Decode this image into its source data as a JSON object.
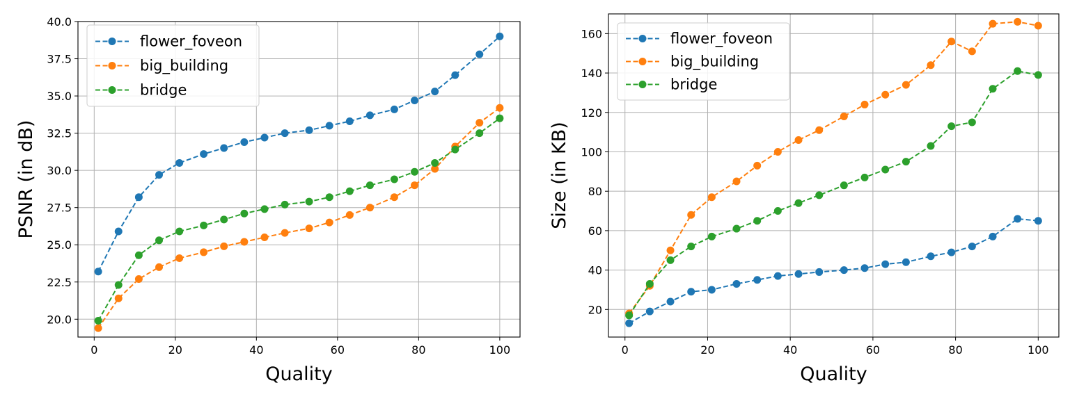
{
  "chart_data": [
    {
      "type": "line",
      "title": "",
      "xlabel": "Quality",
      "ylabel": "PSNR (in dB)",
      "xlim": [
        -4,
        105
      ],
      "ylim": [
        18.8,
        40.0
      ],
      "xticks": [
        0,
        20,
        40,
        60,
        80,
        100
      ],
      "yticks": [
        20.0,
        22.5,
        25.0,
        27.5,
        30.0,
        32.5,
        35.0,
        37.5,
        40.0
      ],
      "xtick_labels": [
        "0",
        "20",
        "40",
        "60",
        "80",
        "100"
      ],
      "ytick_labels": [
        "20.0",
        "22.5",
        "25.0",
        "27.5",
        "30.0",
        "32.5",
        "35.0",
        "37.5",
        "40.0"
      ],
      "grid": true,
      "legend_position": "top-left",
      "x": [
        1,
        6,
        11,
        16,
        21,
        27,
        32,
        37,
        42,
        47,
        53,
        58,
        63,
        68,
        74,
        79,
        84,
        89,
        95,
        100
      ],
      "series": [
        {
          "name": "flower_foveon",
          "color": "#1f77b4",
          "values": [
            23.2,
            25.9,
            28.2,
            29.7,
            30.5,
            31.1,
            31.5,
            31.9,
            32.2,
            32.5,
            32.7,
            33.0,
            33.3,
            33.7,
            34.1,
            34.7,
            35.3,
            36.4,
            37.8,
            39.0
          ]
        },
        {
          "name": "big_building",
          "color": "#ff7f0e",
          "values": [
            19.4,
            21.4,
            22.7,
            23.5,
            24.1,
            24.5,
            24.9,
            25.2,
            25.5,
            25.8,
            26.1,
            26.5,
            27.0,
            27.5,
            28.2,
            29.0,
            30.1,
            31.6,
            33.2,
            34.2
          ]
        },
        {
          "name": "bridge",
          "color": "#2ca02c",
          "values": [
            19.9,
            22.3,
            24.3,
            25.3,
            25.9,
            26.3,
            26.7,
            27.1,
            27.4,
            27.7,
            27.9,
            28.2,
            28.6,
            29.0,
            29.4,
            29.9,
            30.5,
            31.4,
            32.5,
            33.5
          ]
        }
      ]
    },
    {
      "type": "line",
      "title": "",
      "xlabel": "Quality",
      "ylabel": "Size (in KB)",
      "xlim": [
        -4,
        105
      ],
      "ylim": [
        6,
        170
      ],
      "xticks": [
        0,
        20,
        40,
        60,
        80,
        100
      ],
      "yticks": [
        20,
        40,
        60,
        80,
        100,
        120,
        140,
        160
      ],
      "xtick_labels": [
        "0",
        "20",
        "40",
        "60",
        "80",
        "100"
      ],
      "ytick_labels": [
        "20",
        "40",
        "60",
        "80",
        "100",
        "120",
        "140",
        "160"
      ],
      "grid": true,
      "legend_position": "top-left",
      "x": [
        1,
        6,
        11,
        16,
        21,
        27,
        32,
        37,
        42,
        47,
        53,
        58,
        63,
        68,
        74,
        79,
        84,
        89,
        95,
        100
      ],
      "series": [
        {
          "name": "flower_foveon",
          "color": "#1f77b4",
          "values": [
            13,
            19,
            24,
            29,
            30,
            33,
            35,
            37,
            38,
            39,
            40,
            41,
            43,
            44,
            47,
            49,
            52,
            57,
            66,
            65
          ]
        },
        {
          "name": "big_building",
          "color": "#ff7f0e",
          "values": [
            18,
            32,
            50,
            68,
            77,
            85,
            93,
            100,
            106,
            111,
            118,
            124,
            129,
            134,
            144,
            156,
            151,
            165,
            166,
            164
          ]
        },
        {
          "name": "bridge",
          "color": "#2ca02c",
          "values": [
            17,
            33,
            45,
            52,
            57,
            61,
            65,
            70,
            74,
            78,
            83,
            87,
            91,
            95,
            103,
            113,
            115,
            132,
            141,
            139
          ]
        }
      ]
    }
  ]
}
